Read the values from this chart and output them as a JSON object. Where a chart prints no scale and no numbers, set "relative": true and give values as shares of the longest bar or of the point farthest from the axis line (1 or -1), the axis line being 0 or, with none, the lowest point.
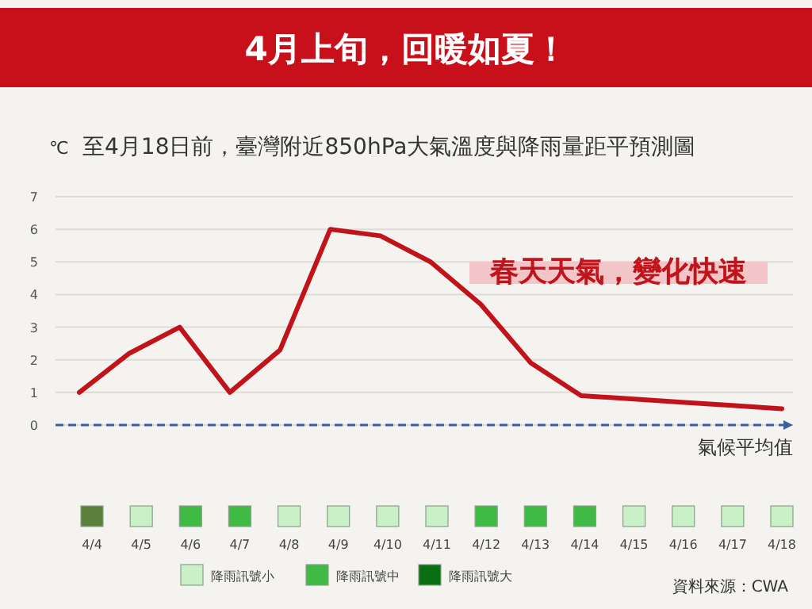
{
  "chart_data": [
    {
      "type": "line",
      "title": "4月上旬，回暖如夏！",
      "subtitle": "至4月18日前，臺灣附近850hPa大氣溫度與降雨量距平預測圖",
      "ylabel": "℃",
      "categories": [
        null,
        null,
        null,
        null,
        null,
        null,
        null,
        null,
        null,
        null,
        null,
        null,
        null,
        null,
        null
      ],
      "series": [
        {
          "color": "#c0141a",
          "values": [
            1.0,
            2.2,
            3.0,
            1.0,
            2.3,
            6.0,
            5.8,
            5.0,
            3.7,
            1.9,
            0.9,
            0.8,
            0.7,
            0.6,
            0.5
          ]
        }
      ],
      "ylim": [
        0,
        7
      ],
      "yticks": [
        0,
        1,
        2,
        3,
        4,
        5,
        6,
        7
      ],
      "grid": "y",
      "marker": "none",
      "line_style": "solid",
      "ref_lines": [
        {
          "axis": "y",
          "value": 0,
          "label": "氣候平均值",
          "color": "#3d5fa0",
          "line_style": "dashed"
        }
      ],
      "annotations": [
        "春天天氣，變化快速"
      ]
    },
    {
      "type": "bar",
      "relative": true,
      "categories": [
        "4/4",
        "4/5",
        "4/6",
        "4/7",
        "4/8",
        "4/9",
        "4/10",
        "4/11",
        "4/12",
        "4/13",
        "4/14",
        "4/15",
        "4/16",
        "4/17",
        "4/18"
      ],
      "values": [
        1,
        1,
        1,
        1,
        1,
        1,
        1,
        1,
        1,
        1,
        1,
        1,
        1,
        1,
        1
      ],
      "colors": [
        "#5b7f3a",
        "#c9f0c6",
        "#3fba45",
        "#3fba45",
        "#c9f0c6",
        "#c9f0c6",
        "#c9f0c6",
        "#c9f0c6",
        "#3fba45",
        "#3fba45",
        "#3fba45",
        "#c9f0c6",
        "#c9f0c6",
        "#c9f0c6",
        "#c9f0c6"
      ],
      "annotations": [
        "降雨訊號小",
        "降雨訊號中",
        "降雨訊號大",
        "資料來源：CWA"
      ]
    }
  ]
}
